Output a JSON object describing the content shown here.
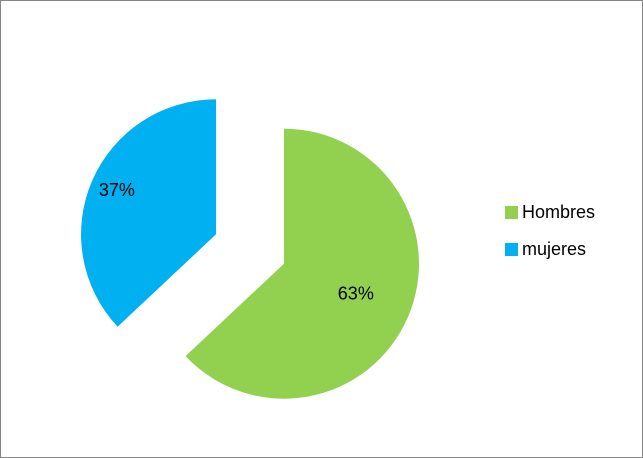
{
  "chart_data": {
    "type": "pie",
    "categories": [
      "Hombres",
      "mujeres"
    ],
    "values": [
      63,
      37
    ],
    "value_labels": [
      "63%",
      "37%"
    ],
    "colors": [
      "#92d050",
      "#00b0f0"
    ],
    "start": "12 o'clock",
    "direction": "clockwise",
    "exploded": true,
    "legend_position": "right"
  },
  "legend": {
    "items": [
      {
        "label": "Hombres",
        "color": "#92d050"
      },
      {
        "label": "mujeres",
        "color": "#00b0f0"
      }
    ]
  }
}
